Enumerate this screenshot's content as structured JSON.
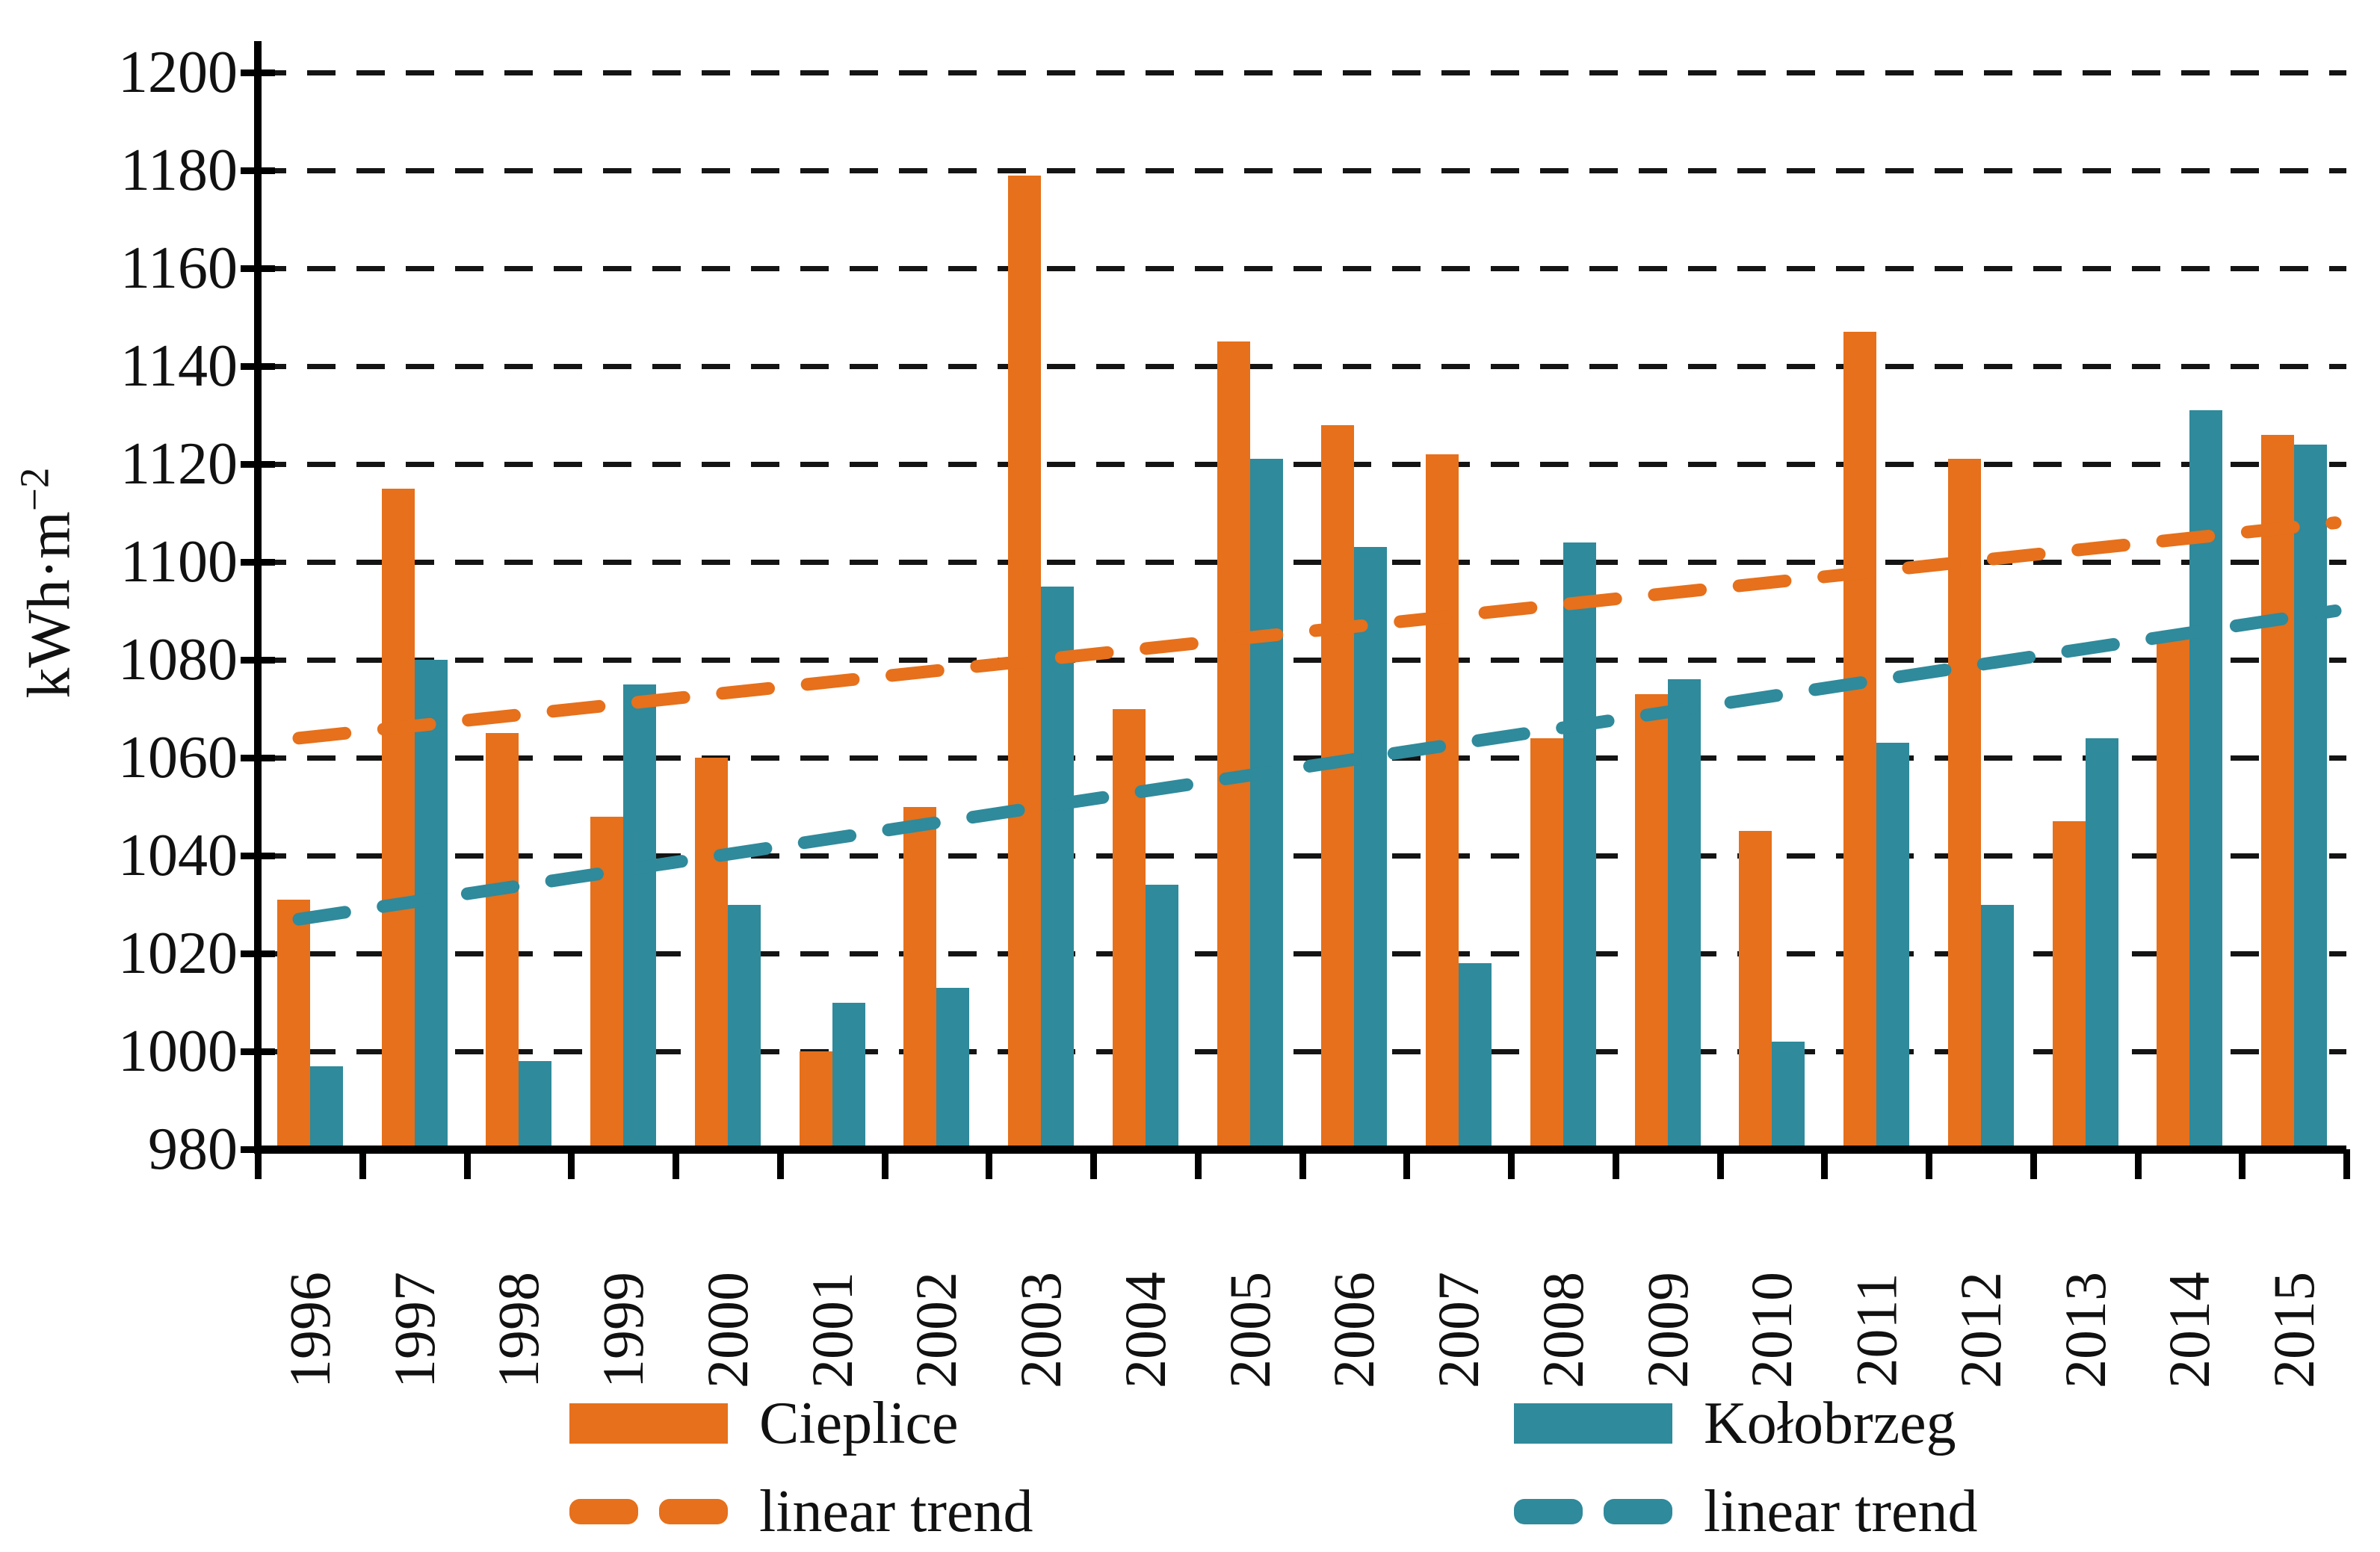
{
  "chart_data": {
    "type": "bar",
    "title": "",
    "xlabel": "",
    "ylabel": "kWh·m⁻²",
    "ylabel_parts": {
      "base": "kWh·m",
      "exponent": "−2"
    },
    "ylim": [
      980,
      1200
    ],
    "ytick_step": 20,
    "grid": "horizontal dashed",
    "legend_position": "bottom",
    "categories": [
      "1996",
      "1997",
      "1998",
      "1999",
      "2000",
      "2001",
      "2002",
      "2003",
      "2004",
      "2005",
      "2006",
      "2007",
      "2008",
      "2009",
      "2010",
      "2011",
      "2012",
      "2013",
      "2014",
      "2015"
    ],
    "series": [
      {
        "name": "Cieplice",
        "color": "#E6701B",
        "values": [
          1031,
          1115,
          1065,
          1048,
          1060,
          1000,
          1050,
          1179,
          1070,
          1145,
          1128,
          1122,
          1064,
          1073,
          1045,
          1147,
          1121,
          1047,
          1085,
          1126
        ]
      },
      {
        "name": "Kołobrzeg",
        "color": "#2F8A9B",
        "values": [
          997,
          1080,
          998,
          1075,
          1030,
          1010,
          1013,
          1095,
          1034,
          1121,
          1103,
          1018,
          1104,
          1076,
          1002,
          1063,
          1030,
          1064,
          1131,
          1124
        ]
      }
    ],
    "trends": [
      {
        "name": "linear trend",
        "series": "Cieplice",
        "color": "#E6701B",
        "start_value": 1064,
        "end_value": 1108
      },
      {
        "name": "linear trend",
        "series": "Kołobrzeg",
        "color": "#2F8A9B",
        "start_value": 1027,
        "end_value": 1090
      }
    ]
  },
  "legend": {
    "items": [
      {
        "label": "Cieplice",
        "swatch": "solid",
        "color": "#E6701B",
        "column": 0
      },
      {
        "label": "linear trend",
        "swatch": "dashed",
        "color": "#E6701B",
        "column": 0
      },
      {
        "label": "Kołobrzeg",
        "swatch": "solid",
        "color": "#2F8A9B",
        "column": 1
      },
      {
        "label": "linear trend",
        "swatch": "dashed",
        "color": "#2F8A9B",
        "column": 1
      }
    ]
  }
}
